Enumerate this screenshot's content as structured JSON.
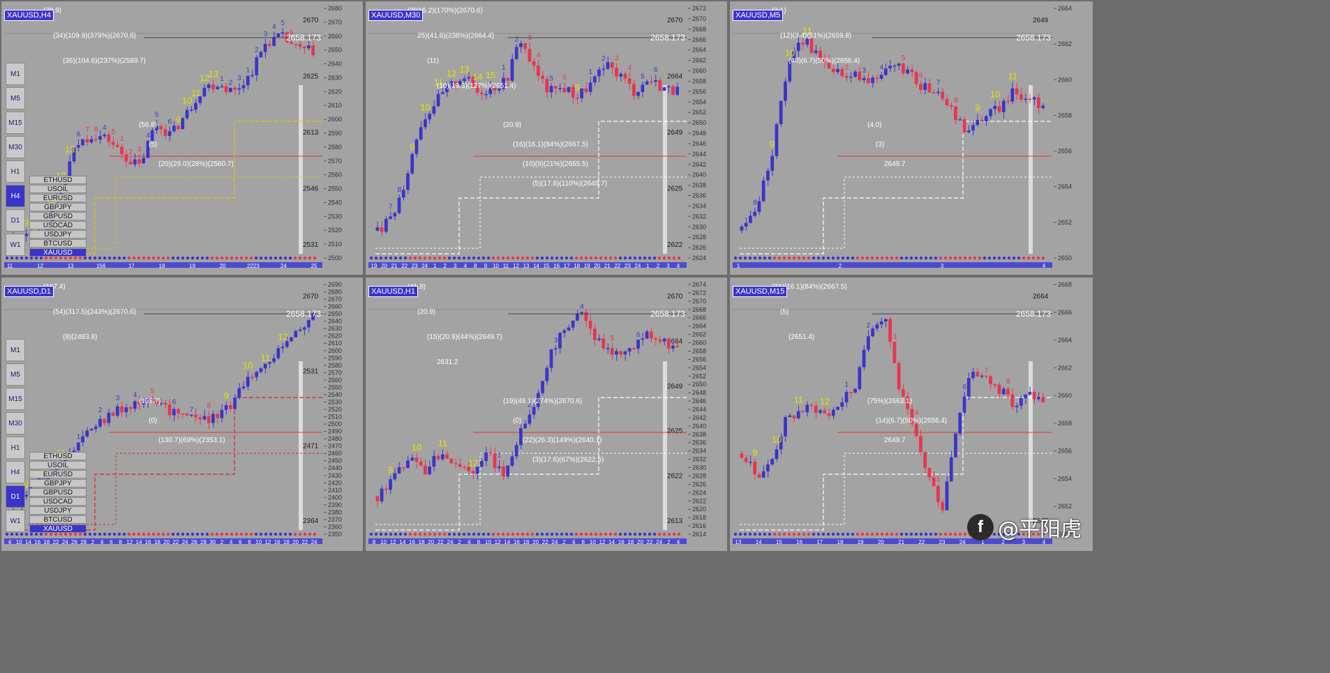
{
  "colors": {
    "bg": "#a3a3a3",
    "bull": "#3a35c8",
    "bear": "#e8354f",
    "yellow": "#e9e000",
    "label": "#ffffff",
    "grid": "#b4b4b4"
  },
  "watermark": {
    "logo": "f",
    "text": "@平阳虎"
  },
  "panels": [
    {
      "id": "h4",
      "title": "XAUUSD,H4",
      "current_price": "2658.173",
      "timeframes": [
        "M1",
        "M5",
        "M15",
        "M30",
        "H1",
        "H4",
        "D1",
        "W1"
      ],
      "selected_timeframe": "H4",
      "symbols": [
        "ETHUSD",
        "USOIL",
        "EURUSD",
        "GBPJPY",
        "GBPUSD",
        "USDCAD",
        "USDJPY",
        "BTCUSD",
        "XAUUSD"
      ],
      "selected_symbol": "XAUUSD",
      "price_ticks": [
        "2680",
        "2670",
        "2660",
        "2650",
        "2640",
        "2630",
        "2620",
        "2610",
        "2600",
        "2590",
        "2580",
        "2570",
        "2560",
        "2550",
        "2540",
        "2530",
        "2520",
        "2510",
        "2500"
      ],
      "side_prices": [
        "2670",
        "2625",
        "2613",
        "2546",
        "2531"
      ],
      "date_ticks": [
        "11",
        "12",
        "13",
        "156",
        "17",
        "18",
        "19",
        "20",
        "2223",
        "24",
        "25"
      ],
      "annotations": [
        "(78.9)",
        "(56.8)",
        "(34)(109.9)(379%)(2670.6)",
        "(5)",
        "(36)(104.6)(237%)(2589.7)",
        "(20)(29.0)(28%)(2560.7)"
      ],
      "counts": [
        "9",
        "9",
        "10",
        "11",
        "12",
        "13",
        "6",
        "7",
        "8",
        "4",
        "5",
        "1",
        "2",
        "3",
        "4",
        "5",
        "6",
        "9",
        "10",
        "11",
        "12",
        "13",
        "1",
        "2",
        "3",
        "1",
        "2",
        "3",
        "4",
        "5",
        "6"
      ]
    },
    {
      "id": "m30",
      "title": "XAUUSD,M30",
      "current_price": "2658.173",
      "price_ticks": [
        "2672",
        "2670",
        "2668",
        "2666",
        "2664",
        "2662",
        "2660",
        "2658",
        "2656",
        "2654",
        "2652",
        "2650",
        "2648",
        "2646",
        "2644",
        "2642",
        "2640",
        "2638",
        "2636",
        "2634",
        "2632",
        "2630",
        "2628",
        "2626",
        "2624"
      ],
      "side_prices": [
        "2670",
        "2664",
        "2649",
        "2625",
        "2622"
      ],
      "date_ticks": [
        "19",
        "20",
        "21",
        "22",
        "23",
        "24",
        "1",
        "2",
        "3",
        "4",
        "8",
        "9",
        "10",
        "11",
        "12",
        "13",
        "14",
        "15",
        "16",
        "17",
        "18",
        "19",
        "20",
        "21",
        "22",
        "23",
        "24",
        "1",
        "2",
        "3",
        "4"
      ],
      "annotations": [
        "(3)(15.2)(170%)(2670.6)",
        "(20.9)",
        "25)(41.8)(238%)(2664.4)",
        "(16)(16.1)(84%)(2667.5)",
        "(11)",
        "(10)(9)(21%)(2655.5)",
        "(10)(19.3)(127%)(2651.4)",
        "(5)(17.8)(110%)(2649.7)"
      ],
      "counts": [
        "7",
        "8",
        "9",
        "10",
        "11",
        "12",
        "13",
        "14",
        "15",
        "1",
        "2",
        "3",
        "4",
        "5",
        "6",
        "9",
        "1",
        "2",
        "3",
        "4",
        "5",
        "6"
      ]
    },
    {
      "id": "m5",
      "title": "XAUUSD,M5",
      "current_price": "2658.173",
      "price_ticks": [
        "2664",
        "2662",
        "2660",
        "2658",
        "2656",
        "2654",
        "2652",
        "2650"
      ],
      "side_prices": [
        "2649"
      ],
      "date_ticks": [
        "1",
        "2",
        "3",
        "4"
      ],
      "annotations": [
        "(3.1)",
        "(4.0)",
        "(12)(3.4)(51%)(2659.8)",
        "(3)",
        "(40)(6.7)(50%)(2656.4)",
        "2649.7"
      ],
      "counts": [
        "8",
        "9",
        "10",
        "11",
        "1",
        "2",
        "3",
        "4",
        "5",
        "6",
        "7",
        "8",
        "9",
        "10",
        "11"
      ]
    },
    {
      "id": "d1",
      "title": "XAUUSD,D1",
      "current_price": "2658.173",
      "timeframes": [
        "M1",
        "M5",
        "M15",
        "M30",
        "H1",
        "H4",
        "D1",
        "W1"
      ],
      "selected_timeframe": "D1",
      "symbols": [
        "ETHUSD",
        "USOIL",
        "EURUSD",
        "GBPJPY",
        "GBPUSD",
        "USDCAD",
        "USDJPY",
        "BTCUSD",
        "XAUUSD"
      ],
      "selected_symbol": "XAUUSD",
      "price_ticks": [
        "2690",
        "2680",
        "2670",
        "2660",
        "2650",
        "2640",
        "2630",
        "2620",
        "2610",
        "2600",
        "2590",
        "2580",
        "2570",
        "2560",
        "2550",
        "2540",
        "2530",
        "2520",
        "2510",
        "2500",
        "2490",
        "2480",
        "2470",
        "2460",
        "2450",
        "2440",
        "2430",
        "2420",
        "2410",
        "2400",
        "2390",
        "2380",
        "2370",
        "2360",
        "2350"
      ],
      "side_prices": [
        "2670",
        "2531",
        "2471",
        "2364"
      ],
      "date_ticks": [
        "4",
        "10",
        "14",
        "16",
        "18",
        "22",
        "24",
        "26",
        "28",
        "2",
        "4",
        "6",
        "8",
        "12",
        "14",
        "16",
        "18",
        "20",
        "22",
        "24",
        "26",
        "28",
        "30",
        "2",
        "4",
        "6",
        "8",
        "10",
        "12",
        "16",
        "18",
        "20",
        "22",
        "24"
      ],
      "annotations": [
        "(167.4)",
        "(198.7)",
        "(54)(317.5)(243%)(2670.6)",
        "(0)",
        "(8)(2483.8)",
        "(130.7)(69%)(2353.1)"
      ],
      "counts": [
        "9",
        "10",
        "11",
        "1",
        "2",
        "3",
        "4",
        "5",
        "6",
        "7",
        "8",
        "9",
        "10",
        "11",
        "12"
      ]
    },
    {
      "id": "h1",
      "title": "XAUUSD,H1",
      "current_price": "2658.173",
      "price_ticks": [
        "2674",
        "2672",
        "2670",
        "2668",
        "2666",
        "2664",
        "2662",
        "2660",
        "2658",
        "2656",
        "2654",
        "2652",
        "2650",
        "2648",
        "2646",
        "2644",
        "2642",
        "2640",
        "2638",
        "2636",
        "2634",
        "2632",
        "2630",
        "2628",
        "2626",
        "2624",
        "2622",
        "2620",
        "2618",
        "2616",
        "2614"
      ],
      "side_prices": [
        "2670",
        "2664",
        "2649",
        "2625",
        "2622",
        "2613"
      ],
      "date_ticks": [
        "8",
        "10",
        "12",
        "14",
        "16",
        "18",
        "20",
        "22",
        "24",
        "2",
        "4",
        "8",
        "10",
        "12",
        "14",
        "16",
        "18",
        "20",
        "22",
        "24",
        "2",
        "4",
        "8",
        "10",
        "12",
        "14",
        "16",
        "18",
        "20",
        "22",
        "24",
        "2",
        "4"
      ],
      "annotations": [
        "(41.8)",
        "(19)(48.1)(274%)(2670.6)",
        "(20.9)",
        "(0)",
        "(15)(20.9)(44%)(2649.7)",
        "(22)(26.3)(149%)(2640.1)",
        "2631.2",
        "(3)(17.6)(67%)(2622.5)"
      ],
      "counts": [
        "9",
        "10",
        "11",
        "12",
        "1",
        "2",
        "3",
        "4",
        "5",
        "6"
      ]
    },
    {
      "id": "m15",
      "title": "XAUUSD,M15",
      "current_price": "2658.173",
      "price_ticks": [
        "2668",
        "2666",
        "2664",
        "2662",
        "2660",
        "2658",
        "2656",
        "2654",
        "2652",
        "2650"
      ],
      "side_prices": [
        "2664",
        "2649"
      ],
      "date_ticks": [
        "13",
        "14",
        "15",
        "16",
        "17",
        "18",
        "19",
        "20",
        "21",
        "22",
        "23",
        "24",
        "1",
        "2",
        "3",
        "4"
      ],
      "annotations": [
        "(31)(16.1)(84%)(2667.5)",
        "(75%)(2663.1)",
        "(5)",
        "(14)(6.7)(50%)(2656.4)",
        "(2651.4)",
        "2649.7"
      ],
      "counts": [
        "9",
        "10",
        "11",
        "12",
        "1",
        "2",
        "3",
        "4",
        "5",
        "6",
        "7",
        "8"
      ]
    }
  ]
}
